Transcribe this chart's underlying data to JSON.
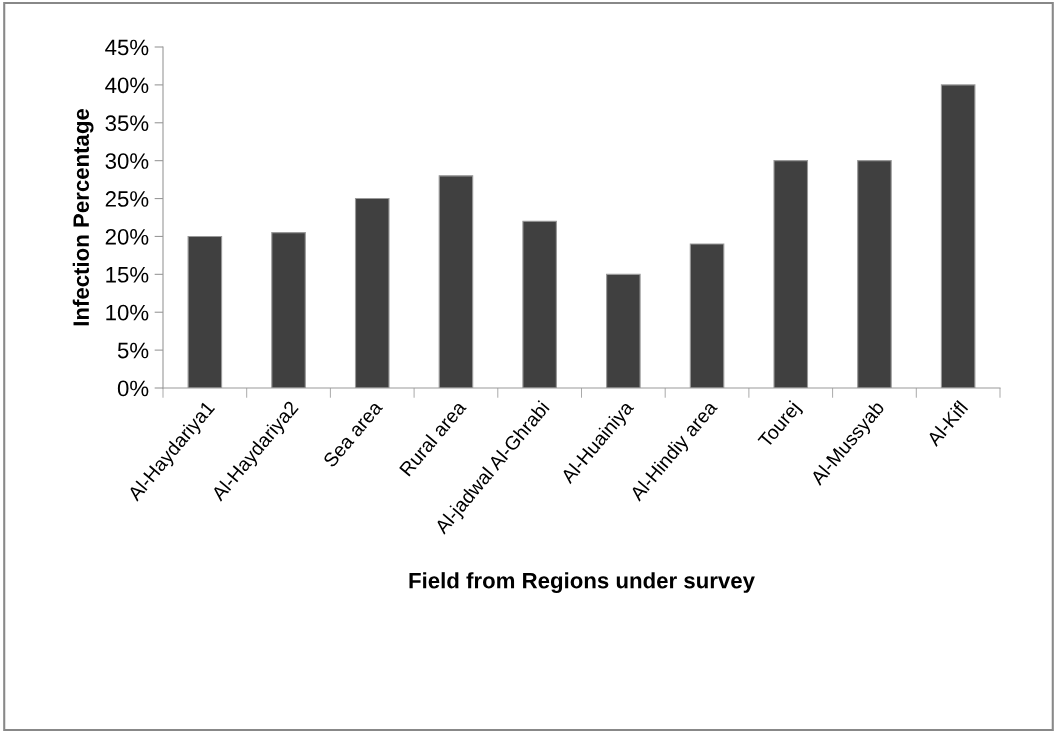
{
  "chart_data": {
    "type": "bar",
    "xlabel": "Field from Regions under survey",
    "ylabel": "Infection Percentage",
    "categories": [
      "Al-Haydariya1",
      "Al-Haydariya2",
      "Sea area",
      "Rural area",
      "Al-jadwal Al-Ghrabi",
      "Al-Huainiya",
      "Al-Hindiy area",
      "Tourej",
      "Al-Mussyab",
      "Al-Kifl"
    ],
    "values": [
      20,
      20.5,
      25,
      28,
      22,
      15,
      19,
      30,
      30,
      40
    ],
    "color": "#404040",
    "ylim": [
      0,
      45
    ],
    "yticks": [
      {
        "value": 0,
        "label": "0%"
      },
      {
        "value": 5,
        "label": "5%"
      },
      {
        "value": 10,
        "label": "10%"
      },
      {
        "value": 15,
        "label": "15%"
      },
      {
        "value": 20,
        "label": "20%"
      },
      {
        "value": 25,
        "label": "25%"
      },
      {
        "value": 30,
        "label": "30%"
      },
      {
        "value": 35,
        "label": "35%"
      },
      {
        "value": 40,
        "label": "40%"
      },
      {
        "value": 45,
        "label": "45%"
      }
    ],
    "grid": false,
    "legend": false
  }
}
